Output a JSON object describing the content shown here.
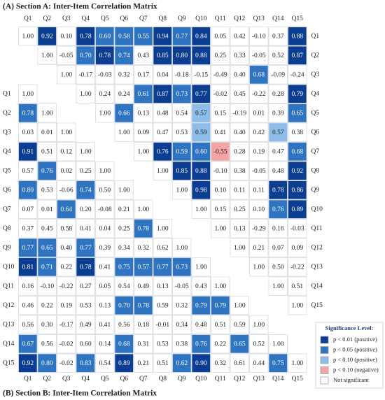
{
  "section_a": {
    "title": "(A) Section A: Inter-Item Correlation Matrix",
    "columns": [
      "Q1",
      "Q2",
      "Q3",
      "Q4",
      "Q5",
      "Q6",
      "Q7",
      "Q8",
      "Q9",
      "Q10",
      "Q11",
      "Q12",
      "Q13",
      "Q14",
      "Q15"
    ],
    "rows": [
      {
        "label": "Q1",
        "values": [
          "1.00",
          "0.92",
          "0.10",
          "0.78",
          "0.60",
          "0.58",
          "0.55",
          "0.94",
          "0.77",
          "0.84",
          "0.05",
          "0.42",
          "-0.10",
          "0.37",
          "0.88"
        ],
        "colors": [
          "#ffffff",
          "#0b3d91",
          "#ffffff",
          "#0b3d91",
          "#2e74c0",
          "#2e74c0",
          "#2e74c0",
          "#0b3d91",
          "#2e74c0",
          "#0b3d91",
          "#ffffff",
          "#ffffff",
          "#ffffff",
          "#ffffff",
          "#0b3d91"
        ]
      },
      {
        "label": "Q2",
        "values": [
          "1.00",
          "-0.05",
          "0.70",
          "0.78",
          "0.74",
          "0.43",
          "0.85",
          "0.80",
          "0.88",
          "0.25",
          "0.33",
          "-0.05",
          "0.52",
          "0.87"
        ],
        "colors": [
          "#ffffff",
          "#ffffff",
          "#2e74c0",
          "#0b3d91",
          "#2e74c0",
          "#ffffff",
          "#0b3d91",
          "#0b3d91",
          "#0b3d91",
          "#ffffff",
          "#ffffff",
          "#ffffff",
          "#ffffff",
          "#0b3d91"
        ]
      },
      {
        "label": "Q3",
        "values": [
          "1.00",
          "-0.17",
          "-0.03",
          "0.32",
          "0.17",
          "0.04",
          "-0.18",
          "-0.15",
          "-0.49",
          "0.40",
          "0.68",
          "-0.09",
          "-0.24"
        ],
        "colors": [
          "#ffffff",
          "#ffffff",
          "#ffffff",
          "#ffffff",
          "#ffffff",
          "#ffffff",
          "#ffffff",
          "#ffffff",
          "#ffffff",
          "#ffffff",
          "#2e74c0",
          "#ffffff",
          "#ffffff"
        ]
      },
      {
        "label": "Q4",
        "values": [
          "1.00",
          "0.24",
          "0.24",
          "0.61",
          "0.87",
          "0.73",
          "0.77",
          "-0.02",
          "0.45",
          "-0.22",
          "0.28",
          "0.79"
        ],
        "colors": [
          "#ffffff",
          "#ffffff",
          "#ffffff",
          "#2e74c0",
          "#0b3d91",
          "#2e74c0",
          "#0b3d91",
          "#ffffff",
          "#ffffff",
          "#ffffff",
          "#ffffff",
          "#0b3d91"
        ]
      },
      {
        "label": "Q5",
        "values": [
          "1.00",
          "0.66",
          "0.13",
          "0.48",
          "0.54",
          "0.57",
          "0.15",
          "-0.19",
          "0.01",
          "0.39",
          "0.65"
        ],
        "colors": [
          "#ffffff",
          "#2e74c0",
          "#ffffff",
          "#ffffff",
          "#ffffff",
          "#8dbde8",
          "#ffffff",
          "#ffffff",
          "#ffffff",
          "#ffffff",
          "#2e74c0"
        ]
      },
      {
        "label": "Q6",
        "values": [
          "1.00",
          "0.09",
          "0.47",
          "0.53",
          "0.59",
          "0.41",
          "0.40",
          "0.42",
          "0.57",
          "0.38"
        ],
        "colors": [
          "#ffffff",
          "#ffffff",
          "#ffffff",
          "#ffffff",
          "#8dbde8",
          "#ffffff",
          "#ffffff",
          "#ffffff",
          "#8dbde8",
          "#ffffff"
        ]
      },
      {
        "label": "Q7",
        "values": [
          "1.00",
          "0.76",
          "0.59",
          "0.60",
          "-0.55",
          "0.28",
          "0.19",
          "0.47",
          "0.68"
        ],
        "colors": [
          "#ffffff",
          "#0b3d91",
          "#2e74c0",
          "#2e74c0",
          "#f5a3a3",
          "#ffffff",
          "#ffffff",
          "#ffffff",
          "#2e74c0"
        ]
      },
      {
        "label": "Q8",
        "values": [
          "1.00",
          "0.85",
          "0.88",
          "-0.10",
          "0.38",
          "-0.05",
          "0.48",
          "0.92"
        ],
        "colors": [
          "#ffffff",
          "#0b3d91",
          "#0b3d91",
          "#ffffff",
          "#ffffff",
          "#ffffff",
          "#ffffff",
          "#0b3d91"
        ]
      },
      {
        "label": "Q9",
        "values": [
          "1.00",
          "0.98",
          "0.10",
          "0.11",
          "0.11",
          "0.78",
          "0.86"
        ],
        "colors": [
          "#ffffff",
          "#0b3d91",
          "#ffffff",
          "#ffffff",
          "#ffffff",
          "#0b3d91",
          "#0b3d91"
        ]
      },
      {
        "label": "Q10",
        "values": [
          "1.00",
          "0.15",
          "0.25",
          "0.10",
          "0.76",
          "0.89"
        ],
        "colors": [
          "#ffffff",
          "#ffffff",
          "#ffffff",
          "#ffffff",
          "#2e74c0",
          "#0b3d91"
        ]
      },
      {
        "label": "Q11",
        "values": [
          "1.00",
          "0.13",
          "-0.29",
          "0.16",
          "-0.03"
        ],
        "colors": [
          "#ffffff",
          "#ffffff",
          "#ffffff",
          "#ffffff",
          "#ffffff"
        ]
      },
      {
        "label": "Q12",
        "values": [
          "1.00",
          "0.21",
          "0.07",
          "0.09"
        ],
        "colors": [
          "#ffffff",
          "#ffffff",
          "#ffffff",
          "#ffffff"
        ]
      },
      {
        "label": "Q13",
        "values": [
          "1.00",
          "0.50",
          "-0.22"
        ],
        "colors": [
          "#ffffff",
          "#ffffff",
          "#ffffff"
        ]
      },
      {
        "label": "Q14",
        "values": [
          "1.00",
          "0.51"
        ],
        "colors": [
          "#ffffff",
          "#ffffff"
        ]
      },
      {
        "label": "Q15",
        "values": [
          "1.00"
        ],
        "colors": [
          "#ffffff"
        ]
      }
    ]
  },
  "section_b": {
    "title": "(B) Section B: Inter-Item Correlation Matrix",
    "columns": [
      "Q1",
      "Q2",
      "Q3",
      "Q4",
      "Q5",
      "Q6",
      "Q7",
      "Q8",
      "Q9",
      "Q10",
      "Q11",
      "Q12",
      "Q13",
      "Q14",
      "Q15"
    ],
    "rows": [
      {
        "label": "Q1",
        "values": [
          "1.00"
        ],
        "colors": [
          "#ffffff"
        ]
      },
      {
        "label": "Q2",
        "values": [
          "0.78",
          "1.00"
        ],
        "colors": [
          "#2e74c0",
          "#ffffff"
        ]
      },
      {
        "label": "Q3",
        "values": [
          "0.03",
          "0.01",
          "1.00"
        ],
        "colors": [
          "#ffffff",
          "#ffffff",
          "#ffffff"
        ]
      },
      {
        "label": "Q4",
        "values": [
          "0.91",
          "0.51",
          "0.12",
          "1.00"
        ],
        "colors": [
          "#0b3d91",
          "#ffffff",
          "#ffffff",
          "#ffffff"
        ]
      },
      {
        "label": "Q5",
        "values": [
          "0.57",
          "0.76",
          "0.02",
          "0.25",
          "1.00"
        ],
        "colors": [
          "#ffffff",
          "#2e74c0",
          "#ffffff",
          "#ffffff",
          "#ffffff"
        ]
      },
      {
        "label": "Q6",
        "values": [
          "0.80",
          "0.53",
          "-0.06",
          "0.74",
          "0.50",
          "1.00"
        ],
        "colors": [
          "#2e74c0",
          "#ffffff",
          "#ffffff",
          "#2e74c0",
          "#ffffff",
          "#ffffff"
        ]
      },
      {
        "label": "Q7",
        "values": [
          "0.07",
          "0.01",
          "0.64",
          "0.20",
          "-0.08",
          "0.21",
          "1.00"
        ],
        "colors": [
          "#ffffff",
          "#ffffff",
          "#2e74c0",
          "#ffffff",
          "#ffffff",
          "#ffffff",
          "#ffffff"
        ]
      },
      {
        "label": "Q8",
        "values": [
          "0.37",
          "0.45",
          "0.58",
          "0.41",
          "0.04",
          "0.25",
          "0.78",
          "1.00"
        ],
        "colors": [
          "#ffffff",
          "#ffffff",
          "#ffffff",
          "#ffffff",
          "#ffffff",
          "#ffffff",
          "#2e74c0",
          "#ffffff"
        ]
      },
      {
        "label": "Q9",
        "values": [
          "0.77",
          "0.65",
          "0.40",
          "0.77",
          "0.39",
          "0.34",
          "0.32",
          "0.62",
          "1.00"
        ],
        "colors": [
          "#2e74c0",
          "#2e74c0",
          "#ffffff",
          "#2e74c0",
          "#ffffff",
          "#ffffff",
          "#ffffff",
          "#ffffff",
          "#ffffff"
        ]
      },
      {
        "label": "Q10",
        "values": [
          "0.81",
          "0.71",
          "0.22",
          "0.78",
          "0.41",
          "0.75",
          "0.57",
          "0.77",
          "0.73",
          "1.00"
        ],
        "colors": [
          "#0b3d91",
          "#2e74c0",
          "#ffffff",
          "#0b3d91",
          "#ffffff",
          "#2e74c0",
          "#2e74c0",
          "#2e74c0",
          "#2e74c0",
          "#ffffff"
        ]
      },
      {
        "label": "Q11",
        "values": [
          "0.16",
          "-0.10",
          "-0.22",
          "0.27",
          "0.05",
          "0.54",
          "0.49",
          "0.13",
          "-0.05",
          "0.43",
          "1.00"
        ],
        "colors": [
          "#ffffff",
          "#ffffff",
          "#ffffff",
          "#ffffff",
          "#ffffff",
          "#ffffff",
          "#ffffff",
          "#ffffff",
          "#ffffff",
          "#ffffff",
          "#ffffff"
        ]
      },
      {
        "label": "Q12",
        "values": [
          "0.46",
          "0.22",
          "0.19",
          "0.53",
          "0.13",
          "0.70",
          "0.78",
          "0.59",
          "0.32",
          "0.79",
          "0.79",
          "1.00"
        ],
        "colors": [
          "#ffffff",
          "#ffffff",
          "#ffffff",
          "#ffffff",
          "#ffffff",
          "#2e74c0",
          "#2e74c0",
          "#ffffff",
          "#ffffff",
          "#2e74c0",
          "#2e74c0",
          "#ffffff"
        ]
      },
      {
        "label": "Q13",
        "values": [
          "0.56",
          "0.30",
          "-0.17",
          "0.49",
          "0.41",
          "0.56",
          "0.18",
          "-0.01",
          "0.34",
          "0.48",
          "0.51",
          "0.59",
          "1.00"
        ],
        "colors": [
          "#ffffff",
          "#ffffff",
          "#ffffff",
          "#ffffff",
          "#ffffff",
          "#ffffff",
          "#ffffff",
          "#ffffff",
          "#ffffff",
          "#ffffff",
          "#ffffff",
          "#ffffff",
          "#ffffff"
        ]
      },
      {
        "label": "Q14",
        "values": [
          "0.67",
          "0.56",
          "-0.02",
          "0.60",
          "0.14",
          "0.68",
          "0.31",
          "0.53",
          "0.38",
          "0.76",
          "0.22",
          "0.65",
          "0.52",
          "1.00"
        ],
        "colors": [
          "#2e74c0",
          "#ffffff",
          "#ffffff",
          "#ffffff",
          "#ffffff",
          "#2e74c0",
          "#ffffff",
          "#ffffff",
          "#ffffff",
          "#2e74c0",
          "#ffffff",
          "#2e74c0",
          "#ffffff",
          "#ffffff"
        ]
      },
      {
        "label": "Q15",
        "values": [
          "0.92",
          "0.80",
          "-0.02",
          "0.83",
          "0.54",
          "0.89",
          "0.21",
          "0.51",
          "0.62",
          "0.90",
          "0.32",
          "0.61",
          "0.44",
          "0.75",
          "1.00"
        ],
        "colors": [
          "#0b3d91",
          "#2e74c0",
          "#ffffff",
          "#2e74c0",
          "#ffffff",
          "#0b3d91",
          "#ffffff",
          "#ffffff",
          "#2e74c0",
          "#0b3d91",
          "#ffffff",
          "#ffffff",
          "#ffffff",
          "#2e74c0",
          "#ffffff"
        ]
      }
    ]
  },
  "legend": {
    "title": "Significance Level:",
    "items": [
      {
        "label": "p < 0.01 (positive)",
        "color": "#0b3d91"
      },
      {
        "label": "p < 0.05 (positive)",
        "color": "#2e74c0"
      },
      {
        "label": "p < 0.10 (positive)",
        "color": "#8dbde8"
      },
      {
        "label": "p < 0.10 (negative)",
        "color": "#f5a3a3"
      },
      {
        "label": "Not significant",
        "color": "#ffffff"
      }
    ]
  }
}
